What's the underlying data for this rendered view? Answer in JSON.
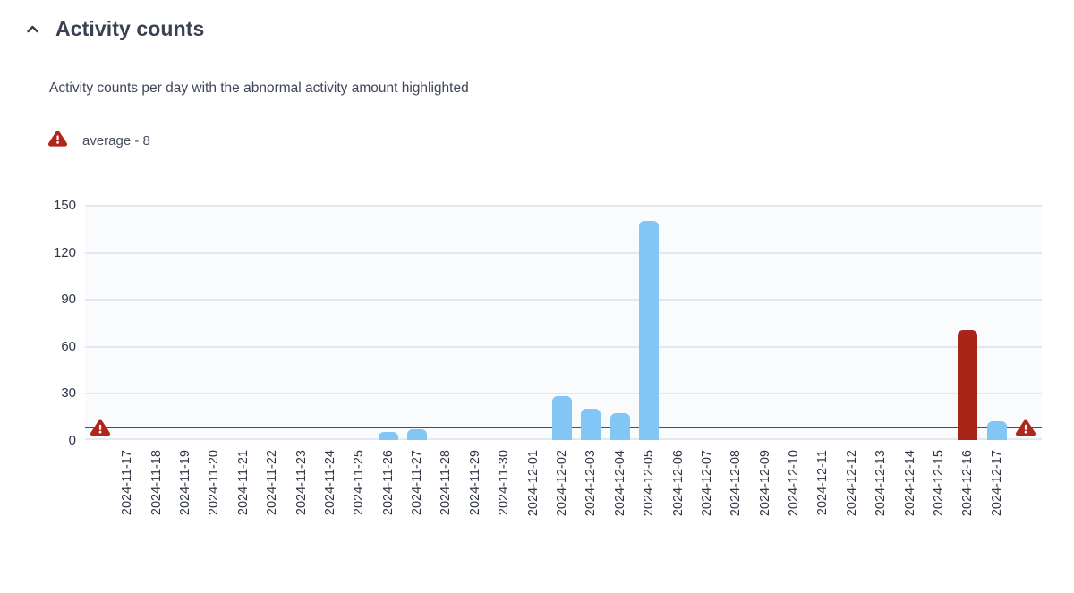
{
  "header": {
    "title": "Activity counts",
    "collapse_icon": "chevron-up"
  },
  "description": "Activity counts per day with the abnormal activity amount highlighted",
  "legend": {
    "icon": "warning-triangle",
    "label": "average - 8"
  },
  "colors": {
    "bar_normal": "#82C6F5",
    "bar_abnormal": "#A92518",
    "average_line": "#B0261A",
    "warning_icon": "#B0261A",
    "grid": "#E3E7F0",
    "plot_background": "#FAFBFD",
    "axis_text": "#2F3542",
    "title_text": "#3A4153"
  },
  "chart_data": {
    "type": "bar",
    "title": "Activity counts",
    "subtitle": "Activity counts per day with the abnormal activity amount highlighted",
    "categories": [
      "2024-11-17",
      "2024-11-18",
      "2024-11-19",
      "2024-11-20",
      "2024-11-21",
      "2024-11-22",
      "2024-11-23",
      "2024-11-24",
      "2024-11-25",
      "2024-11-26",
      "2024-11-27",
      "2024-11-28",
      "2024-11-29",
      "2024-11-30",
      "2024-12-01",
      "2024-12-02",
      "2024-12-03",
      "2024-12-04",
      "2024-12-05",
      "2024-12-06",
      "2024-12-07",
      "2024-12-08",
      "2024-12-09",
      "2024-12-10",
      "2024-12-11",
      "2024-12-12",
      "2024-12-13",
      "2024-12-14",
      "2024-12-15",
      "2024-12-16",
      "2024-12-17"
    ],
    "values": [
      0,
      0,
      0,
      0,
      0,
      0,
      0,
      0,
      0,
      5,
      7,
      0,
      0,
      0,
      0,
      28,
      20,
      17,
      140,
      0,
      0,
      0,
      0,
      0,
      0,
      0,
      0,
      0,
      0,
      70,
      12
    ],
    "abnormal_index": 29,
    "average": 8,
    "xlabel": "",
    "ylabel": "",
    "yticks": [
      0,
      30,
      60,
      90,
      120,
      150
    ],
    "ylim": [
      0,
      150
    ],
    "grid": true,
    "legend_position": "top-left",
    "x_tick_rotation": -90
  }
}
